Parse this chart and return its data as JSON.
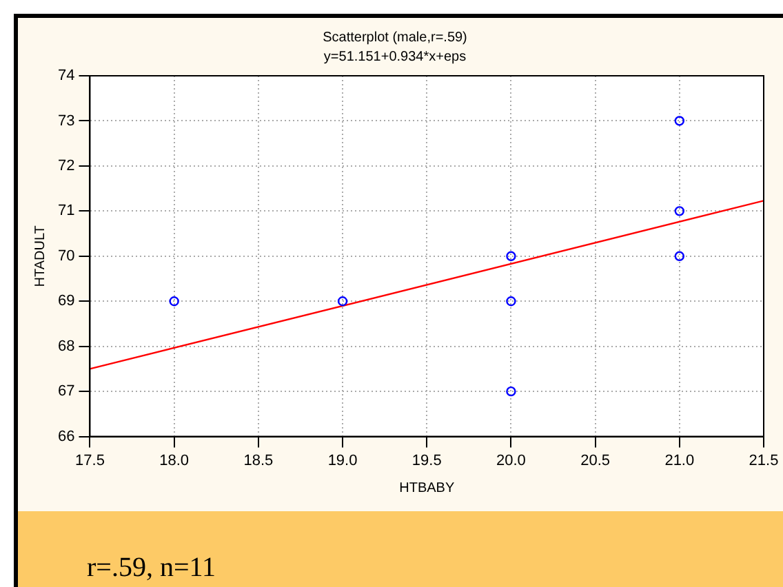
{
  "chart_data": {
    "type": "scatter",
    "title": "Scatterplot (male,r=.59)",
    "subtitle": "y=51.151+0.934*x+eps",
    "xlabel": "HTBABY",
    "ylabel": "HTADULT",
    "series": [
      {
        "color": "#0000ff",
        "marker": "circle",
        "x": [
          18,
          19,
          20,
          20,
          20,
          21,
          21,
          21
        ],
        "values": [
          69,
          69,
          70,
          69,
          67,
          73,
          71,
          70
        ]
      },
      {
        "type": "line",
        "color": "#ff0000",
        "marker": "none",
        "x": [
          17.5,
          21.5
        ],
        "values": [
          67.5,
          71.23
        ]
      }
    ],
    "xlim": [
      17.5,
      21.5
    ],
    "xticks": [
      17.5,
      {
        "value": 18,
        "label": "18.0"
      },
      18.5,
      {
        "value": 19,
        "label": "19.0"
      },
      19.5,
      {
        "value": 20,
        "label": "20.0"
      },
      20.5,
      {
        "value": 21,
        "label": "21.0"
      },
      21.5
    ],
    "ylim": [
      66,
      74
    ],
    "yticks": [
      66,
      67,
      68,
      69,
      70,
      71,
      72,
      73,
      74
    ],
    "grid": true,
    "line_style": "solid",
    "legend": false,
    "annotations": [
      "r=.59, n=11"
    ]
  }
}
